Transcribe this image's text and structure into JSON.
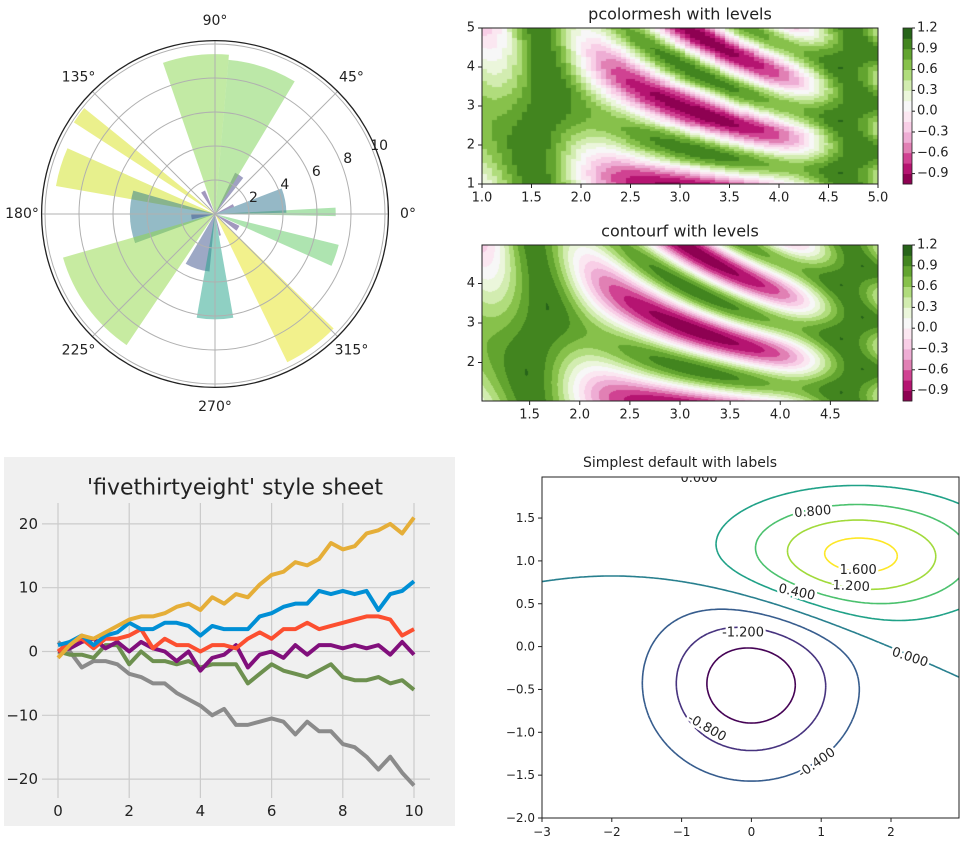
{
  "chart_data": [
    {
      "type": "polar-bar",
      "title": "",
      "theta_tick_labels": [
        "0°",
        "45°",
        "90°",
        "135°",
        "180°",
        "225°",
        "270°",
        "315°"
      ],
      "r_tick_labels": [
        "2",
        "4",
        "6",
        "8",
        "10"
      ],
      "rlim": [
        0,
        10.2
      ],
      "alpha": 0.5,
      "bars": [
        {
          "theta_deg": 1,
          "width_deg": 4,
          "r": 7.1,
          "color": "#5ec962"
        },
        {
          "theta_deg": 11,
          "width_deg": 20,
          "r": 4.2,
          "color": "#2c728e"
        },
        {
          "theta_deg": 25,
          "width_deg": 8,
          "r": 1.2,
          "color": "#46327e"
        },
        {
          "theta_deg": 58,
          "width_deg": 12,
          "r": 2.7,
          "color": "#414487"
        },
        {
          "theta_deg": 72,
          "width_deg": 26,
          "r": 9.1,
          "color": "#7ad151"
        },
        {
          "theta_deg": 97,
          "width_deg": 24,
          "r": 9.4,
          "color": "#86d549"
        },
        {
          "theta_deg": 118,
          "width_deg": 10,
          "r": 1.5,
          "color": "#46327e"
        },
        {
          "theta_deg": 144,
          "width_deg": 6,
          "r": 9.9,
          "color": "#d8e219"
        },
        {
          "theta_deg": 163,
          "width_deg": 14,
          "r": 9.5,
          "color": "#d0e11c"
        },
        {
          "theta_deg": 182,
          "width_deg": 36,
          "r": 5.0,
          "color": "#2a788e"
        },
        {
          "theta_deg": 186,
          "width_deg": 14,
          "r": 1.4,
          "color": "#3b528b"
        },
        {
          "theta_deg": 216,
          "width_deg": 40,
          "r": 9.3,
          "color": "#8fd744"
        },
        {
          "theta_deg": 252,
          "width_deg": 25,
          "r": 3.4,
          "color": "#3b528b"
        },
        {
          "theta_deg": 270,
          "width_deg": 20,
          "r": 6.2,
          "color": "#1fa187"
        },
        {
          "theta_deg": 283,
          "width_deg": 5,
          "r": 1.3,
          "color": "#46327e"
        },
        {
          "theta_deg": 306,
          "width_deg": 20,
          "r": 9.7,
          "color": "#e5e419"
        },
        {
          "theta_deg": 328,
          "width_deg": 12,
          "r": 1.6,
          "color": "#46327e"
        },
        {
          "theta_deg": 341,
          "width_deg": 10,
          "r": 7.5,
          "color": "#5ec962"
        }
      ]
    },
    {
      "type": "heatmap",
      "title": "pcolormesh with levels",
      "function": "sin(x)^10 + cos(10 + y*x) * cos(x)",
      "xlim": [
        1.0,
        5.0
      ],
      "ylim": [
        1.0,
        5.0
      ],
      "step": 0.05,
      "x_tick_labels": [
        "1.0",
        "1.5",
        "2.0",
        "2.5",
        "3.0",
        "3.5",
        "4.0",
        "4.5",
        "5.0"
      ],
      "y_tick_labels": [
        "1",
        "2",
        "3",
        "4",
        "5"
      ],
      "colormap": "PiYG",
      "levels": {
        "min": -1.05,
        "max": 1.2,
        "step": 0.15
      },
      "colorbar_tick_labels": [
        "1.2",
        "0.9",
        "0.6",
        "0.3",
        "0.0",
        "−0.3",
        "−0.6",
        "−0.9"
      ]
    },
    {
      "type": "contourf",
      "title": "contourf with levels",
      "function": "sin(x)^10 + cos(10 + y*x) * cos(x)",
      "xlim": [
        1.025,
        4.975
      ],
      "ylim": [
        1.025,
        4.975
      ],
      "x_tick_labels": [
        "1.5",
        "2.0",
        "2.5",
        "3.0",
        "3.5",
        "4.0",
        "4.5"
      ],
      "y_tick_labels": [
        "2",
        "3",
        "4"
      ],
      "colormap": "PiYG",
      "levels": {
        "min": -1.05,
        "max": 1.2,
        "step": 0.15
      },
      "colorbar_tick_labels": [
        "1.2",
        "0.9",
        "0.6",
        "0.3",
        "0.0",
        "−0.3",
        "−0.6",
        "−0.9"
      ]
    },
    {
      "type": "line",
      "title": "'fivethirtyeight' style sheet",
      "xlim": [
        0,
        10
      ],
      "ylim": [
        -23,
        23
      ],
      "x_tick_labels": [
        "0",
        "2",
        "4",
        "6",
        "8",
        "10"
      ],
      "y_tick_labels": [
        "20",
        "10",
        "0",
        "−10",
        "−20"
      ],
      "x": [
        0,
        0.333,
        0.667,
        1,
        1.333,
        1.667,
        2,
        2.333,
        2.667,
        3,
        3.333,
        3.667,
        4,
        4.333,
        4.667,
        5,
        5.333,
        5.667,
        6,
        6.333,
        6.667,
        7,
        7.333,
        7.667,
        8,
        8.333,
        8.667,
        9,
        9.333,
        9.667,
        10
      ],
      "series": [
        {
          "name": "gray",
          "color": "#8b8b8b",
          "values": [
            1.5,
            0,
            -2.5,
            -1.5,
            -1.5,
            -2,
            -3.5,
            -4,
            -5,
            -5,
            -6.5,
            -7.5,
            -8.5,
            -10,
            -9,
            -11.5,
            -11.5,
            -11,
            -10.5,
            -11,
            -13,
            -11,
            -12.5,
            -12.5,
            -14.5,
            -15,
            -16.5,
            -18.5,
            -16.5,
            -19,
            -21
          ]
        },
        {
          "name": "green",
          "color": "#6d904f",
          "values": [
            0,
            -0.5,
            -0.5,
            -1,
            1,
            1,
            -2,
            0,
            -1.5,
            -1.5,
            -2,
            -1.5,
            -2.5,
            -2,
            -2,
            -2,
            -5,
            -3.5,
            -2,
            -3,
            -3.5,
            -4,
            -3,
            -2,
            -4,
            -4.5,
            -4.5,
            -4,
            -5,
            -4.5,
            -6
          ]
        },
        {
          "name": "purple",
          "color": "#810f7c",
          "values": [
            0,
            0.5,
            1.5,
            2,
            0.5,
            1.5,
            0,
            1.5,
            0.5,
            0,
            -1.5,
            0,
            -3,
            -1,
            -0.5,
            1,
            -2.5,
            -0.5,
            0,
            -1,
            1,
            -0.5,
            1,
            1,
            0.5,
            1,
            0.5,
            1,
            -0.5,
            1.5,
            -0.5
          ]
        },
        {
          "name": "red",
          "color": "#fc4f30",
          "values": [
            0,
            1.5,
            2,
            0.5,
            2,
            2,
            2.5,
            3.5,
            0.5,
            2,
            1,
            1,
            0,
            1,
            1,
            0.5,
            2,
            3,
            2,
            3.5,
            3.5,
            4.5,
            3.5,
            4,
            4.5,
            5,
            5.5,
            5.5,
            5,
            2.5,
            3.5
          ]
        },
        {
          "name": "blue",
          "color": "#008fd5",
          "values": [
            1,
            1.5,
            2.5,
            1,
            2.5,
            3,
            4.5,
            3.5,
            3.5,
            4.5,
            4.5,
            4,
            2.5,
            4,
            3.5,
            3.5,
            3.5,
            5.5,
            6,
            7,
            7.5,
            7.5,
            9.5,
            9,
            9.5,
            9,
            9.5,
            6.5,
            9,
            9.5,
            11
          ]
        },
        {
          "name": "gold",
          "color": "#e5ae38",
          "values": [
            -1,
            1,
            2.5,
            2,
            3,
            4,
            5,
            5.5,
            5.5,
            6,
            7,
            7.5,
            6.5,
            8.5,
            7.5,
            9,
            8.5,
            10.5,
            12,
            12.5,
            14,
            13.5,
            14.5,
            17,
            16,
            16.5,
            18.5,
            19,
            20,
            18.5,
            21
          ]
        }
      ]
    },
    {
      "type": "contour",
      "title": "Simplest default with labels",
      "xlim": [
        -3,
        2.975
      ],
      "ylim": [
        -2,
        1.975
      ],
      "x_tick_labels": [
        "−3",
        "−2",
        "−1",
        "0",
        "1",
        "2"
      ],
      "y_tick_labels": [
        "1.5",
        "1.0",
        "0.5",
        "0.0",
        "−0.5",
        "−1.0",
        "−1.5",
        "−2.0"
      ],
      "levels": [
        -1.2,
        -0.8,
        -0.4,
        0,
        0.4,
        0.8,
        1.2,
        1.6
      ],
      "level_colors": [
        "#440154",
        "#46327e",
        "#365c8d",
        "#277f8e",
        "#1fa187",
        "#4ac16d",
        "#a0da39",
        "#fde725"
      ],
      "labels": [
        {
          "text": "0.000",
          "x": -0.75,
          "y": 1.96,
          "rot": 0,
          "level": 3
        },
        {
          "text": "0.800",
          "x": 0.88,
          "y": 1.57,
          "rot": -5,
          "level": 5
        },
        {
          "text": "1.600",
          "x": 1.53,
          "y": 0.89,
          "rot": 0,
          "level": 7
        },
        {
          "text": "1.200",
          "x": 1.43,
          "y": 0.7,
          "rot": 3,
          "level": 6
        },
        {
          "text": "0.400",
          "x": 0.65,
          "y": 0.63,
          "rot": 12,
          "level": 4
        },
        {
          "text": "0.000",
          "x": 2.27,
          "y": -0.13,
          "rot": 18,
          "level": 3
        },
        {
          "text": "-1.200",
          "x": -0.12,
          "y": 0.16,
          "rot": 0,
          "level": 0
        },
        {
          "text": "-0.800",
          "x": -0.64,
          "y": -0.95,
          "rot": 30,
          "level": 1
        },
        {
          "text": "-0.400",
          "x": 0.94,
          "y": -1.36,
          "rot": -35,
          "level": 2
        }
      ]
    }
  ]
}
